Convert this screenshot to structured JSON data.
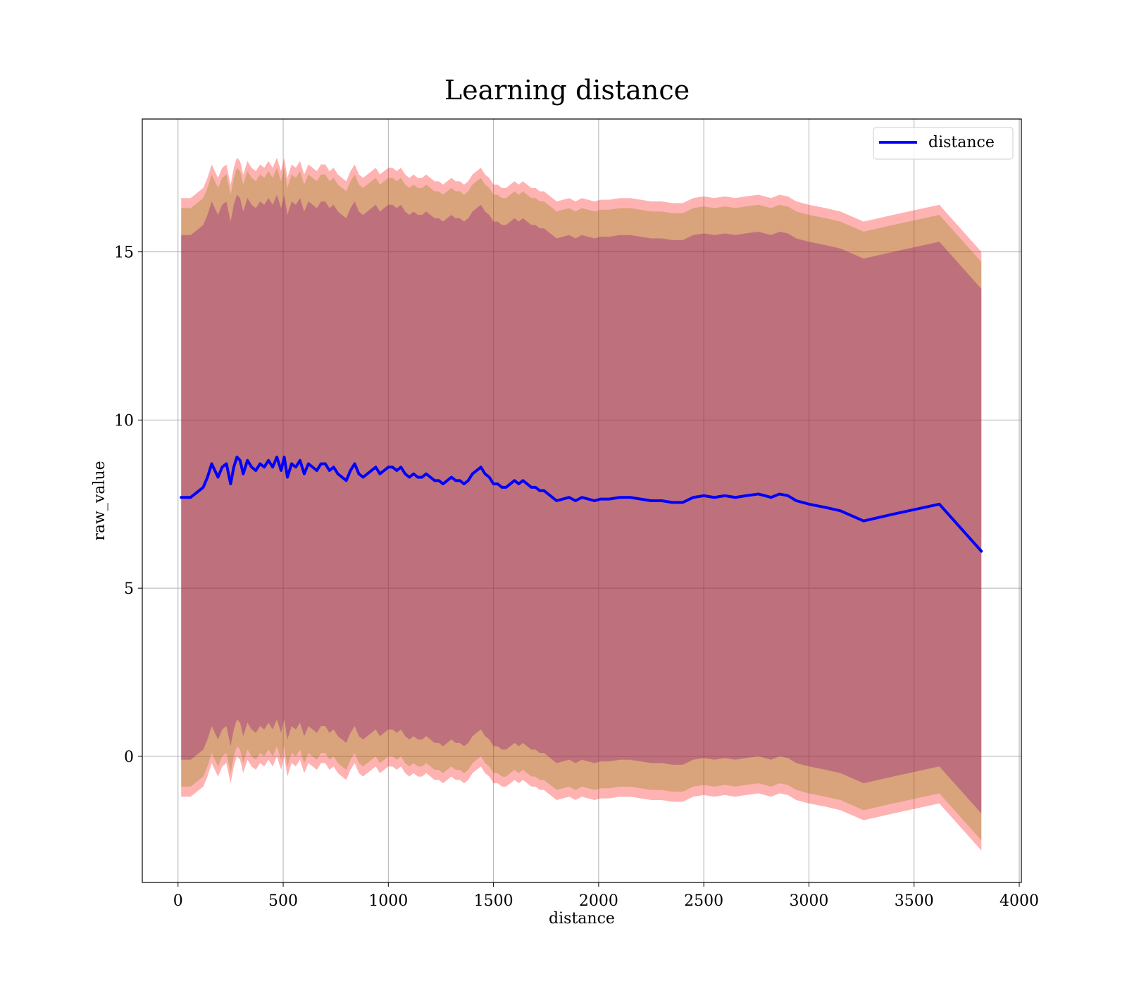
{
  "chart_data": {
    "type": "line",
    "title": "Learning distance",
    "xlabel": "distance",
    "ylabel": "raw_value",
    "xlim": [
      -170,
      4010
    ],
    "ylim": [
      -3.75,
      18.95
    ],
    "xticks": [
      0,
      500,
      1000,
      1500,
      2000,
      2500,
      3000,
      3500,
      4000
    ],
    "xtick_labels": [
      "0",
      "500",
      "1000",
      "1500",
      "2000",
      "2500",
      "3000",
      "3500",
      "4000"
    ],
    "yticks": [
      0,
      5,
      10,
      15
    ],
    "ytick_labels": [
      "0",
      "5",
      "10",
      "15"
    ],
    "grid": true,
    "legend": {
      "position": "top-right",
      "entries": [
        {
          "label": "distance",
          "color": "#0000ff"
        }
      ]
    },
    "colors": {
      "line": "#0000ff",
      "band_outer": "#ff0000",
      "band_middle": "#808000",
      "band_inner": "#800080"
    },
    "series": [
      {
        "name": "distance",
        "x": [
          15,
          40,
          60,
          80,
          100,
          120,
          140,
          160,
          175,
          190,
          210,
          230,
          250,
          265,
          280,
          295,
          310,
          330,
          350,
          370,
          390,
          410,
          430,
          450,
          470,
          490,
          505,
          520,
          540,
          560,
          580,
          600,
          620,
          640,
          660,
          680,
          700,
          720,
          740,
          760,
          780,
          800,
          820,
          840,
          860,
          880,
          900,
          920,
          940,
          960,
          980,
          1000,
          1020,
          1040,
          1060,
          1080,
          1100,
          1120,
          1140,
          1160,
          1180,
          1200,
          1220,
          1240,
          1260,
          1280,
          1300,
          1320,
          1340,
          1360,
          1380,
          1400,
          1420,
          1440,
          1460,
          1480,
          1500,
          1520,
          1540,
          1560,
          1580,
          1600,
          1620,
          1640,
          1660,
          1680,
          1700,
          1720,
          1740,
          1760,
          1780,
          1800,
          1830,
          1860,
          1890,
          1920,
          1950,
          1980,
          2010,
          2050,
          2100,
          2150,
          2200,
          2250,
          2300,
          2350,
          2400,
          2450,
          2500,
          2550,
          2600,
          2650,
          2700,
          2760,
          2820,
          2860,
          2900,
          2940,
          3000,
          3080,
          3150,
          3260,
          3400,
          3620,
          3820
        ],
        "values": [
          7.7,
          7.7,
          7.7,
          7.8,
          7.9,
          8.0,
          8.3,
          8.7,
          8.5,
          8.3,
          8.6,
          8.7,
          8.1,
          8.6,
          8.9,
          8.8,
          8.4,
          8.8,
          8.6,
          8.5,
          8.7,
          8.6,
          8.8,
          8.6,
          8.9,
          8.5,
          8.9,
          8.3,
          8.7,
          8.6,
          8.8,
          8.4,
          8.7,
          8.6,
          8.5,
          8.7,
          8.7,
          8.5,
          8.6,
          8.4,
          8.3,
          8.2,
          8.5,
          8.7,
          8.4,
          8.3,
          8.4,
          8.5,
          8.6,
          8.4,
          8.5,
          8.6,
          8.6,
          8.5,
          8.6,
          8.4,
          8.3,
          8.4,
          8.3,
          8.3,
          8.4,
          8.3,
          8.2,
          8.2,
          8.1,
          8.2,
          8.3,
          8.2,
          8.2,
          8.1,
          8.2,
          8.4,
          8.5,
          8.6,
          8.4,
          8.3,
          8.1,
          8.1,
          8.0,
          8.0,
          8.1,
          8.2,
          8.1,
          8.2,
          8.1,
          8.0,
          8.0,
          7.9,
          7.9,
          7.8,
          7.7,
          7.6,
          7.65,
          7.7,
          7.6,
          7.7,
          7.65,
          7.6,
          7.65,
          7.65,
          7.7,
          7.7,
          7.65,
          7.6,
          7.6,
          7.55,
          7.55,
          7.7,
          7.75,
          7.7,
          7.75,
          7.7,
          7.75,
          7.8,
          7.7,
          7.8,
          7.75,
          7.6,
          7.5,
          7.4,
          7.3,
          7.0,
          7.2,
          7.5,
          6.1
        ]
      }
    ],
    "bands": [
      {
        "offset_low": -8.9,
        "offset_high": 8.9
      },
      {
        "offset_low": -8.6,
        "offset_high": 8.6
      },
      {
        "offset_low": -7.8,
        "offset_high": 7.8
      }
    ]
  }
}
